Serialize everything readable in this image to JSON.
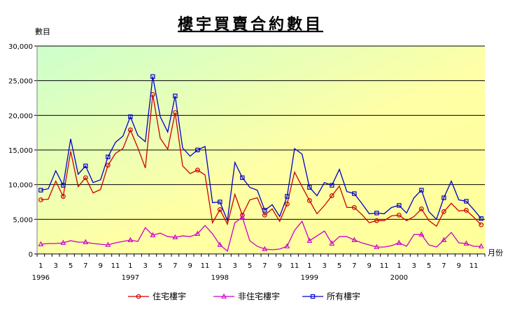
{
  "chart_data": {
    "type": "line",
    "title": "樓宇買賣合約數目",
    "ylabel": "數目",
    "xlabel": "月份",
    "ylim": [
      0,
      30000
    ],
    "yticks": [
      "0",
      "5,000",
      "10,000",
      "15,000",
      "20,000",
      "25,000",
      "30,000"
    ],
    "grid": "horizontal",
    "legend_position": "bottom",
    "x_month_labels": [
      "1",
      "3",
      "5",
      "7",
      "9",
      "11",
      "1",
      "3",
      "5",
      "7",
      "9",
      "11",
      "1",
      "3",
      "5",
      "7",
      "9",
      "11",
      "1",
      "3",
      "5",
      "7",
      "9",
      "11",
      "1",
      "3",
      "5",
      "7",
      "9",
      "11"
    ],
    "x_year_labels": [
      "1996",
      "1997",
      "1998",
      "1999",
      "2000"
    ],
    "series": [
      {
        "name": "住宅樓宇",
        "color": "#CC0000",
        "marker": "circle",
        "values": [
          7800,
          7900,
          10500,
          8300,
          14800,
          9700,
          11000,
          8800,
          9300,
          12800,
          14500,
          15200,
          17900,
          15300,
          12400,
          23000,
          16700,
          15100,
          20400,
          12700,
          11600,
          12100,
          11400,
          4500,
          6400,
          4300,
          8600,
          5600,
          7800,
          8100,
          5600,
          6500,
          4700,
          7200,
          11800,
          9700,
          7700,
          5800,
          7000,
          8400,
          9800,
          6700,
          6700,
          5700,
          4500,
          4800,
          4800,
          5500,
          5600,
          4800,
          5400,
          6500,
          4800,
          4000,
          6100,
          7300,
          6200,
          6300,
          5300,
          4200
        ]
      },
      {
        "name": "非住宅樓宇",
        "color": "#CC00CC",
        "marker": "triangle",
        "values": [
          1400,
          1500,
          1500,
          1600,
          1900,
          1700,
          1700,
          1500,
          1400,
          1300,
          1600,
          1800,
          2000,
          1800,
          3800,
          2700,
          3000,
          2500,
          2400,
          2600,
          2500,
          2900,
          4100,
          2900,
          1300,
          400,
          4500,
          5300,
          1900,
          1100,
          700,
          600,
          700,
          1100,
          3400,
          4700,
          1900,
          2600,
          3300,
          1500,
          2500,
          2500,
          2000,
          1600,
          1300,
          1000,
          1000,
          1200,
          1600,
          1100,
          2800,
          2800,
          1300,
          1000,
          2000,
          3100,
          1600,
          1500,
          1100,
          1100
        ]
      },
      {
        "name": "所有樓宇",
        "color": "#0000CC",
        "marker": "square",
        "values": [
          9200,
          9400,
          12000,
          9900,
          16600,
          11500,
          12700,
          10300,
          10700,
          14000,
          16100,
          17000,
          19800,
          17100,
          16200,
          25600,
          19800,
          17600,
          22800,
          15300,
          14100,
          15000,
          15500,
          7400,
          7500,
          4800,
          13200,
          11000,
          9600,
          9200,
          6300,
          7100,
          5400,
          8300,
          15200,
          14400,
          9600,
          8400,
          10300,
          9900,
          12200,
          9000,
          8700,
          7300,
          5800,
          5900,
          5800,
          6700,
          7000,
          5900,
          8100,
          9200,
          6100,
          5000,
          8100,
          10500,
          7800,
          7600,
          6400,
          5100
        ]
      }
    ]
  }
}
